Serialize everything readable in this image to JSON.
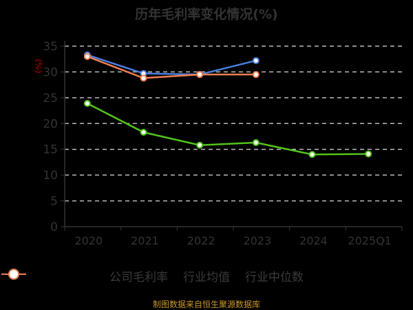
{
  "title": "历年毛利率变化情况(%)",
  "footer": "制图数据来自恒生聚源数据库",
  "y_unit": "(%)",
  "legend": [
    {
      "label": "公司毛利率",
      "color": "#52c41a"
    },
    {
      "label": "行业均值",
      "color": "#4a7fe0"
    },
    {
      "label": "行业中位数",
      "color": "#f08050"
    }
  ],
  "chart_data": {
    "type": "line",
    "title": "历年毛利率变化情况(%)",
    "xlabel": "",
    "ylabel": "(%)",
    "ylim": [
      0,
      35
    ],
    "yticks": [
      0,
      5,
      10,
      15,
      20,
      25,
      30,
      35
    ],
    "grid": true,
    "legend_position": "bottom",
    "categories": [
      "2020",
      "2021",
      "2022",
      "2023",
      "2024",
      "2025Q1"
    ],
    "series": [
      {
        "name": "公司毛利率",
        "color": "#52c41a",
        "values": [
          23.9,
          18.3,
          15.8,
          16.3,
          14.0,
          14.1
        ]
      },
      {
        "name": "行业均值",
        "color": "#4a7fe0",
        "values": [
          33.3,
          29.7,
          29.5,
          32.2,
          null,
          null
        ]
      },
      {
        "name": "行业中位数",
        "color": "#f08050",
        "values": [
          33.0,
          28.8,
          29.5,
          29.5,
          null,
          null
        ]
      }
    ]
  }
}
